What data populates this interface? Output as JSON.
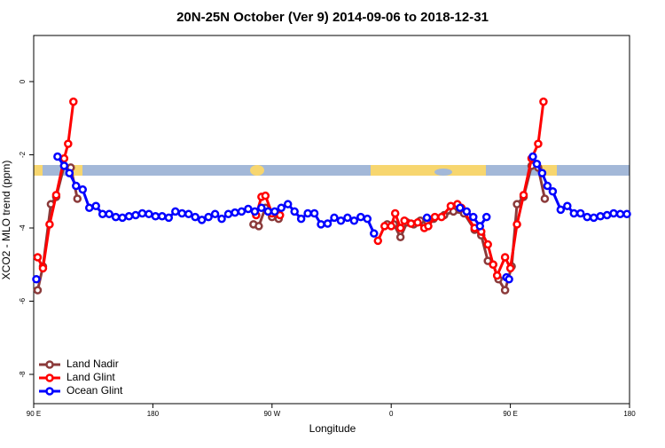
{
  "chart_data": {
    "type": "line",
    "title": "20N-25N October (Ver 9)   2014-09-06 to 2018-12-31",
    "x_label": "Longitude",
    "y_label": "XCO2 - MLO trend (ppm)",
    "xlim": [
      90,
      540
    ],
    "ylim": [
      -8.8,
      1.26
    ],
    "xticks": [
      {
        "value": 90,
        "label": "90 E"
      },
      180,
      {
        "value": 270,
        "label": "90 W"
      },
      {
        "value": 360,
        "label": "0"
      },
      {
        "value": 450,
        "label": "90 E"
      },
      {
        "value": 540,
        "label": "180"
      }
    ],
    "yticks": [
      0,
      -2,
      -4,
      -6,
      -8
    ],
    "legend": "bottom-left",
    "series": [
      {
        "name": "Land Nadir",
        "color": "#8b3a3a",
        "x": [
          93,
          97,
          103,
          107,
          113,
          118,
          123,
          190,
          256,
          260,
          265,
          270,
          275,
          300,
          357,
          362,
          367,
          372,
          377,
          382,
          387,
          392,
          400,
          407,
          415,
          423,
          428,
          433,
          437,
          441,
          446,
          451,
          455,
          460,
          466,
          471,
          476
        ],
        "values": [
          -5.7,
          -5.05,
          -3.35,
          -3.15,
          -2.3,
          -2.35,
          -3.2,
          null,
          -3.9,
          -3.95,
          -3.45,
          -3.7,
          -3.75,
          null,
          -3.9,
          -3.9,
          -4.25,
          -3.85,
          -3.9,
          -3.8,
          -3.8,
          -3.75,
          -3.65,
          -3.55,
          -3.6,
          -4.05,
          -4.2,
          -4.9,
          -5.0,
          -5.4,
          -5.7,
          -5.05,
          -3.35,
          -3.15,
          -2.3,
          -2.35,
          -3.2
        ]
      },
      {
        "name": "Land Glint",
        "color": "#ff0000",
        "x": [
          93,
          97,
          102,
          107,
          113,
          116,
          120,
          190,
          258,
          262,
          265,
          270,
          276,
          300,
          350,
          355,
          360,
          363,
          367,
          370,
          375,
          380,
          385,
          388,
          393,
          398,
          405,
          410,
          413,
          423,
          428,
          433,
          437,
          440,
          446,
          450,
          455,
          460,
          466,
          471,
          475
        ],
        "values": [
          -4.8,
          -5.1,
          -3.9,
          -3.1,
          -2.1,
          -1.7,
          -0.55,
          null,
          -3.65,
          -3.15,
          -3.12,
          -3.6,
          -3.65,
          null,
          -4.35,
          -3.95,
          -3.95,
          -3.6,
          -4.0,
          -3.8,
          -3.88,
          -3.85,
          -4.0,
          -3.95,
          -3.7,
          -3.7,
          -3.4,
          -3.35,
          -3.45,
          -4.0,
          -4.1,
          -4.45,
          -5.0,
          -5.3,
          -4.8,
          -5.1,
          -3.9,
          -3.1,
          -2.1,
          -1.7,
          -0.55
        ]
      },
      {
        "name": "Ocean Glint",
        "color": "#0000ff",
        "x": [
          92,
          100,
          108,
          113,
          117,
          122,
          127,
          132,
          137,
          142,
          147,
          152,
          157,
          162,
          167,
          172,
          177,
          182,
          187,
          192,
          197,
          202,
          207,
          212,
          217,
          222,
          227,
          232,
          237,
          242,
          247,
          252,
          257,
          262,
          267,
          272,
          277,
          282,
          287,
          292,
          297,
          302,
          307,
          312,
          317,
          322,
          327,
          332,
          337,
          342,
          347,
          365,
          387,
          395,
          412,
          417,
          422,
          427,
          432,
          440,
          447,
          449,
          458,
          467,
          470,
          474,
          478,
          482,
          488,
          493,
          498,
          503,
          508,
          513,
          518,
          523,
          528,
          533,
          538
        ],
        "values": [
          -5.4,
          null,
          -2.05,
          -2.3,
          -2.5,
          -2.85,
          -2.95,
          -3.45,
          -3.4,
          -3.62,
          -3.62,
          -3.7,
          -3.72,
          -3.68,
          -3.65,
          -3.6,
          -3.62,
          -3.68,
          -3.68,
          -3.72,
          -3.55,
          -3.6,
          -3.62,
          -3.7,
          -3.78,
          -3.7,
          -3.62,
          -3.75,
          -3.62,
          -3.58,
          -3.55,
          -3.48,
          -3.55,
          -3.45,
          -3.55,
          -3.55,
          -3.45,
          -3.35,
          -3.55,
          -3.75,
          -3.6,
          -3.6,
          -3.9,
          -3.88,
          -3.72,
          -3.8,
          -3.72,
          -3.8,
          -3.7,
          -3.75,
          -4.15,
          null,
          -3.72,
          null,
          -3.45,
          -3.55,
          -3.7,
          -3.95,
          -3.7,
          null,
          -5.35,
          -5.4,
          null,
          -2.05,
          -2.25,
          -2.5,
          -2.85,
          -3.0,
          -3.5,
          -3.4,
          -3.6,
          -3.6,
          -3.7,
          -3.72,
          -3.68,
          -3.65,
          -3.6,
          -3.62,
          -3.62
        ]
      }
    ]
  }
}
